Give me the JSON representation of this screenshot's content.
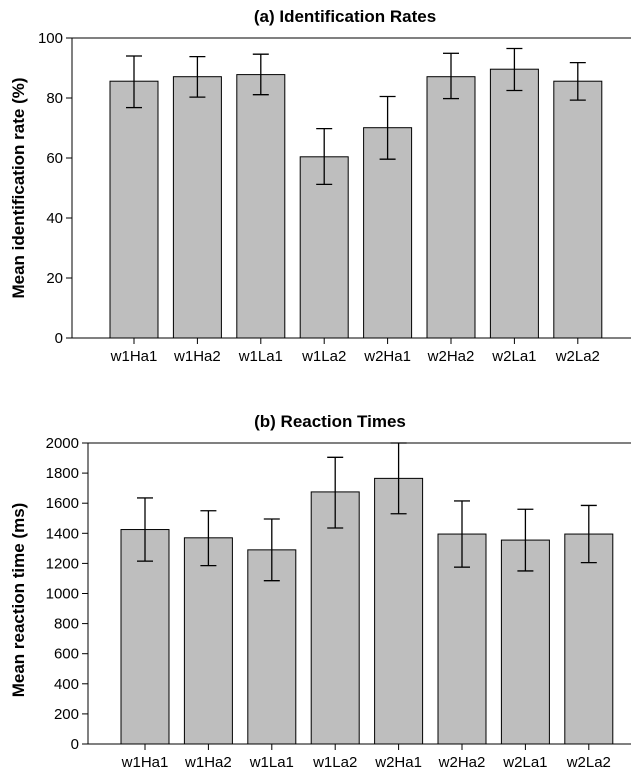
{
  "chart_data": [
    {
      "type": "bar",
      "title": "(a) Identification Rates",
      "xlabel": "",
      "ylabel": "Mean identification rate (%)",
      "ylim": [
        0,
        100
      ],
      "yticks": [
        0,
        20,
        40,
        60,
        80,
        100
      ],
      "categories": [
        "w1Ha1",
        "w1Ha2",
        "w1La1",
        "w1La2",
        "w2Ha1",
        "w2Ha2",
        "w2La1",
        "w2La2"
      ],
      "values": [
        85.6,
        87.1,
        87.8,
        60.4,
        70.1,
        87.1,
        89.6,
        85.6
      ],
      "error_low": [
        76.8,
        80.3,
        81.1,
        51.2,
        59.6,
        79.8,
        82.5,
        79.3
      ],
      "error_high": [
        94.0,
        93.8,
        94.6,
        69.8,
        80.5,
        94.9,
        96.5,
        91.8
      ],
      "grid": false,
      "legend": "none"
    },
    {
      "type": "bar",
      "title": "(b) Reaction Times",
      "xlabel": "",
      "ylabel": "Mean reaction time (ms)",
      "ylim": [
        0,
        2000
      ],
      "yticks": [
        0,
        200,
        400,
        600,
        800,
        1000,
        1200,
        1400,
        1600,
        1800,
        2000
      ],
      "categories": [
        "w1Ha1",
        "w1Ha2",
        "w1La1",
        "w1La2",
        "w2Ha1",
        "w2Ha2",
        "w2La1",
        "w2La2"
      ],
      "values": [
        1425,
        1370,
        1290,
        1675,
        1765,
        1395,
        1355,
        1395
      ],
      "error_low": [
        1215,
        1185,
        1085,
        1435,
        1530,
        1175,
        1150,
        1205
      ],
      "error_high": [
        1635,
        1550,
        1495,
        1905,
        2000,
        1615,
        1560,
        1585
      ],
      "grid": false,
      "legend": "none"
    }
  ]
}
